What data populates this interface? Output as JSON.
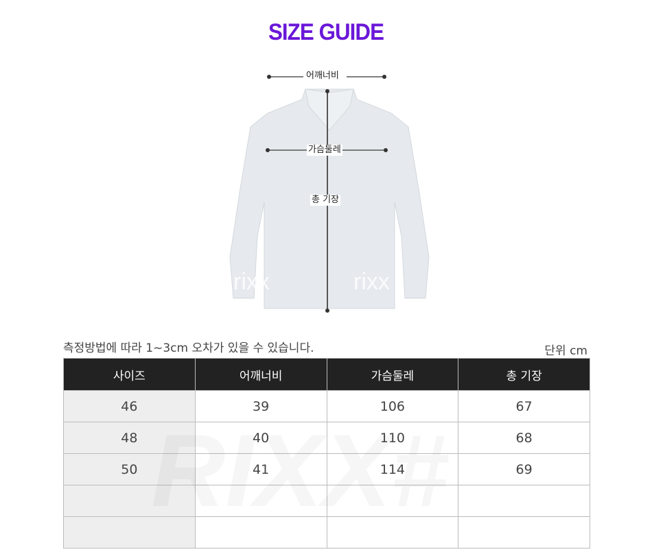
{
  "title": "SIZE GUIDE",
  "diagram": {
    "shoulder": "어깨너비",
    "chest": "가슴둘레",
    "length": "총 기장",
    "watermark": "rixx"
  },
  "note": "측정방법에 따라 1~3cm 오차가 있을 수 있습니다.",
  "unit": "단위 cm",
  "table": {
    "headers": [
      "사이즈",
      "어깨너비",
      "가슴둘레",
      "총 기장"
    ],
    "rows": [
      [
        "46",
        "39",
        "106",
        "67"
      ],
      [
        "48",
        "40",
        "110",
        "68"
      ],
      [
        "50",
        "41",
        "114",
        "69"
      ],
      [
        "",
        "",
        "",
        ""
      ],
      [
        "",
        "",
        "",
        ""
      ]
    ]
  },
  "brand_watermark": "RIXX#",
  "colors": {
    "title": "#6a17d8",
    "header_bg": "#222222"
  }
}
